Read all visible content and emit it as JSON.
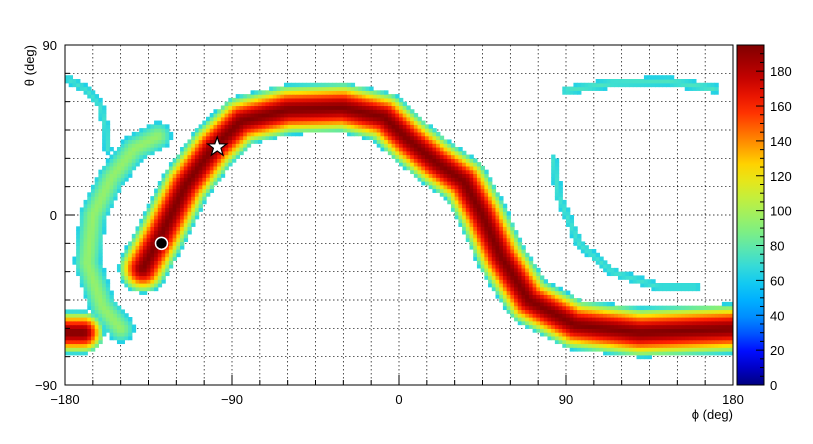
{
  "chart_data": {
    "type": "heatmap",
    "title": "",
    "xlabel": "ϕ (deg)",
    "ylabel": "θ (deg)",
    "xlim": [
      -180,
      180
    ],
    "ylim": [
      -90,
      90
    ],
    "x_ticks": [
      -180,
      -90,
      0,
      90,
      180
    ],
    "y_ticks": [
      -90,
      0,
      90
    ],
    "x_tick_labels": [
      "−180",
      "−90",
      "0",
      "90",
      "180"
    ],
    "y_tick_labels": [
      "−90",
      "0",
      "90"
    ],
    "grid": true,
    "colorbar": {
      "range": [
        0,
        195
      ],
      "ticks": [
        0,
        20,
        40,
        60,
        80,
        100,
        120,
        140,
        160,
        180
      ],
      "tick_labels": [
        "0",
        "20",
        "40",
        "60",
        "80",
        "100",
        "120",
        "140",
        "160",
        "180"
      ],
      "colormap": [
        "#000080",
        "#0000ff",
        "#0080ff",
        "#00c0ff",
        "#40e0d0",
        "#80f080",
        "#c0f040",
        "#ffe000",
        "#ff8000",
        "#ff2000",
        "#c00000",
        "#800000"
      ]
    },
    "bands": [
      {
        "thickness_deg": 14,
        "peak_value": 195,
        "points": [
          [
            -138,
            -28
          ],
          [
            -128,
            -10
          ],
          [
            -115,
            16
          ],
          [
            -100,
            36
          ],
          [
            -85,
            50
          ],
          [
            -60,
            56
          ],
          [
            -30,
            57
          ],
          [
            -8,
            52
          ],
          [
            5,
            40
          ],
          [
            20,
            28
          ],
          [
            35,
            18
          ],
          [
            45,
            0
          ],
          [
            55,
            -22
          ],
          [
            70,
            -45
          ],
          [
            95,
            -58
          ],
          [
            130,
            -62
          ],
          [
            180,
            -60
          ]
        ]
      },
      {
        "thickness_deg": 12,
        "peak_value": 195,
        "points": [
          [
            -180,
            -62
          ],
          [
            -170,
            -62
          ]
        ]
      },
      {
        "thickness_deg": 9,
        "peak_value": 95,
        "points": [
          [
            -150,
            -60
          ],
          [
            -160,
            -48
          ],
          [
            -168,
            -25
          ],
          [
            -165,
            0
          ],
          [
            -155,
            20
          ],
          [
            -143,
            35
          ],
          [
            -130,
            42
          ]
        ]
      },
      {
        "thickness_deg": 4,
        "peak_value": 72,
        "points": [
          [
            -178,
            72
          ],
          [
            -168,
            66
          ],
          [
            -161,
            58
          ],
          [
            -158,
            46
          ],
          [
            -157,
            35
          ]
        ]
      },
      {
        "thickness_deg": 4,
        "peak_value": 75,
        "points": [
          [
            90,
            66
          ],
          [
            115,
            70
          ],
          [
            145,
            71
          ],
          [
            170,
            67
          ]
        ]
      },
      {
        "thickness_deg": 4,
        "peak_value": 72,
        "points": [
          [
            83,
            30
          ],
          [
            86,
            10
          ],
          [
            97,
            -15
          ],
          [
            115,
            -30
          ],
          [
            140,
            -38
          ],
          [
            160,
            -38
          ]
        ]
      }
    ],
    "markers": [
      {
        "type": "circle",
        "x": -128,
        "y": -15
      },
      {
        "type": "star",
        "x": -98,
        "y": 36
      }
    ]
  }
}
